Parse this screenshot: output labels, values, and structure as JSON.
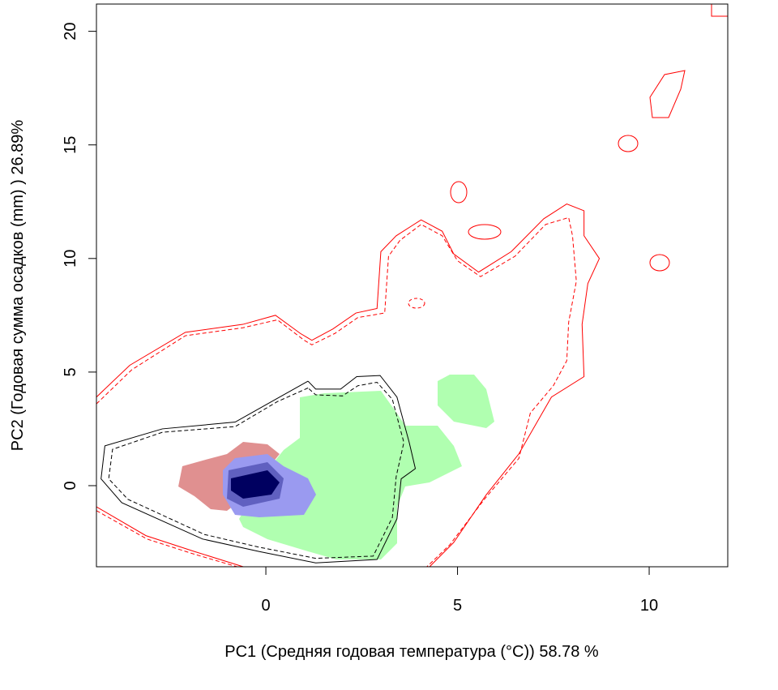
{
  "chart_data": {
    "type": "contour",
    "x_label": "PC1 (Средняя годовая температура (°C)) 58.78 %",
    "y_label": "PC2 (Годовая сумма осадков  (mm) ) 26.89%",
    "xlim": [
      -4.42,
      12.05
    ],
    "ylim": [
      -3.57,
      21.2
    ],
    "xticks": [
      0,
      5,
      10
    ],
    "yticks": [
      0,
      5,
      10,
      15,
      20
    ],
    "series": [
      {
        "color": "#ff0000",
        "dash": false,
        "x": [
          -4.42,
          -3.55,
          -2.1,
          -0.6,
          0.25,
          0.9,
          1.2,
          1.75,
          2.35,
          2.9,
          3.0,
          3.4,
          4.05,
          4.6,
          4.9,
          5.55,
          6.4,
          7.25,
          7.85,
          8.3,
          8.3,
          8.7,
          8.4,
          8.25,
          8.3,
          7.45,
          6.6,
          5.75,
          4.9,
          4.27
        ],
        "y": [
          3.9,
          5.3,
          6.75,
          7.1,
          7.5,
          6.7,
          6.4,
          6.9,
          7.6,
          7.8,
          10.3,
          11.0,
          11.7,
          11.2,
          10.2,
          9.4,
          10.3,
          11.75,
          12.4,
          12.1,
          11.0,
          10.0,
          8.9,
          7.1,
          4.8,
          3.9,
          1.4,
          -0.4,
          -2.5,
          -3.57
        ]
      },
      {
        "color": "#ff0000",
        "dash": false,
        "x": [
          -4.42,
          -3.13,
          -1.86,
          -0.59
        ],
        "y": [
          -0.93,
          -2.2,
          -2.9,
          -3.57
        ]
      },
      {
        "color": "#ff0000",
        "dash": true,
        "x": [
          -4.42,
          -3.5,
          -2.1,
          -0.6,
          0.3,
          1.0,
          1.2,
          1.8,
          2.4,
          3.1,
          3.2,
          3.5,
          4.05,
          4.6,
          5.0,
          5.6,
          6.5,
          7.3,
          7.9,
          8.0,
          8.1,
          7.9,
          7.85,
          7.5,
          6.9,
          6.6,
          5.7,
          4.8,
          4.2
        ],
        "y": [
          3.6,
          5.1,
          6.6,
          6.95,
          7.3,
          6.4,
          6.2,
          6.7,
          7.4,
          7.6,
          10.1,
          10.8,
          11.5,
          11.0,
          9.9,
          9.2,
          10.1,
          11.5,
          11.8,
          11.0,
          9.0,
          7.2,
          5.5,
          4.4,
          3.2,
          1.2,
          -0.6,
          -2.6,
          -3.57
        ]
      },
      {
        "color": "#ff0000",
        "dash": true,
        "x": [
          -4.42,
          -3.1,
          -1.9,
          -0.75
        ],
        "y": [
          -1.1,
          -2.35,
          -3.0,
          -3.57
        ]
      },
      {
        "color": "#000000",
        "dash": false,
        "x": [
          1.1,
          0.36,
          -0.8,
          -2.7,
          -4.2,
          -4.3,
          -3.76,
          -1.65,
          -0.17,
          1.3,
          2.9,
          3.42,
          3.53,
          3.9,
          3.74,
          3.42,
          2.98,
          2.37,
          1.95,
          1.3,
          1.1
        ],
        "y": [
          4.6,
          3.9,
          2.8,
          2.5,
          1.75,
          0.3,
          -0.75,
          -2.35,
          -2.9,
          -3.4,
          -3.25,
          -1.46,
          0.3,
          0.75,
          1.9,
          3.9,
          4.85,
          4.8,
          4.25,
          4.25,
          4.6
        ]
      },
      {
        "color": "#000000",
        "dash": true,
        "x": [
          1.1,
          0.3,
          -0.8,
          -2.7,
          -4.0,
          -4.1,
          -3.6,
          -1.6,
          -0.2,
          1.3,
          2.8,
          3.3,
          3.4,
          3.6,
          3.3,
          2.9,
          2.4,
          2.0,
          1.3,
          1.1
        ],
        "y": [
          4.3,
          3.7,
          2.6,
          2.35,
          1.6,
          0.3,
          -0.6,
          -2.15,
          -2.7,
          -3.2,
          -3.1,
          -1.4,
          0.4,
          1.9,
          3.8,
          4.55,
          4.4,
          3.95,
          4.0,
          4.3
        ]
      }
    ]
  }
}
